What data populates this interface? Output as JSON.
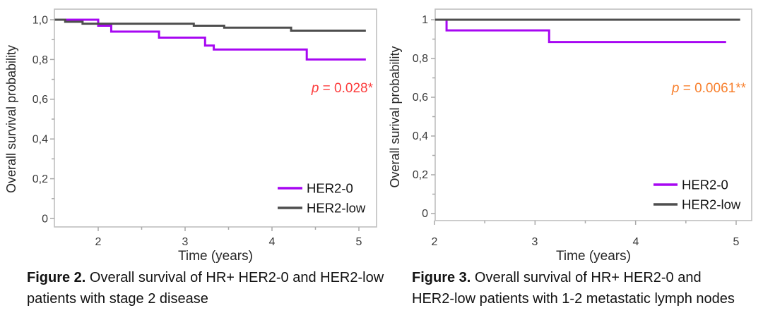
{
  "style": {
    "frame_color": "#bfbfbf",
    "tick_color": "#a9a9a9",
    "her2_0_color": "#a707f2",
    "her2_low_color": "#4e4e4e",
    "p_left_color": "#fc3d3d",
    "p_right_color": "#f8812f"
  },
  "chart_data": [
    {
      "type": "line",
      "chart_style": "kaplan-meier-step",
      "ylabel": "Overall survival probability",
      "xlabel": "Time (years)",
      "xlim": [
        1.5,
        5.12
      ],
      "ylim": [
        0,
        1.05
      ],
      "grid": false,
      "x_ticks": [
        2,
        3,
        4,
        5
      ],
      "x_tick_labels": [
        "2",
        "3",
        "4",
        "5"
      ],
      "x_minor_ticks": [
        2.5,
        3.5,
        4.5
      ],
      "y_ticks": [
        1.0,
        0.8,
        0.6,
        0.4,
        0.2,
        0
      ],
      "y_tick_labels": [
        "1,0",
        "0,8",
        "0,6",
        "0,4",
        "0,2",
        "0"
      ],
      "y_minor_ticks": [
        0.9,
        0.7,
        0.5,
        0.3,
        0.1
      ],
      "legend_position": "inside lower right",
      "annotation": {
        "p_symbol": "p",
        "p_rest": " = 0.028*",
        "color": "#fc3d3d"
      },
      "series": [
        {
          "name": "HER2-0",
          "color": "#a707f2",
          "end_time": 5.08,
          "steps": [
            [
              1.5,
              1.0
            ],
            [
              2.0,
              0.97
            ],
            [
              2.15,
              0.94
            ],
            [
              2.7,
              0.91
            ],
            [
              3.23,
              0.87
            ],
            [
              3.33,
              0.85
            ],
            [
              4.4,
              0.8
            ]
          ]
        },
        {
          "name": "HER2-low",
          "color": "#4e4e4e",
          "end_time": 5.08,
          "steps": [
            [
              1.5,
              1.0
            ],
            [
              1.62,
              0.99
            ],
            [
              1.82,
              0.98
            ],
            [
              3.1,
              0.97
            ],
            [
              3.45,
              0.96
            ],
            [
              4.22,
              0.945
            ]
          ]
        }
      ],
      "caption": {
        "label": "Figure 2.",
        "text": " Overall survival of HR+ HER2-0 and HER2-low patients with stage 2 disease"
      }
    },
    {
      "type": "line",
      "chart_style": "kaplan-meier-step",
      "ylabel": "Overall surival probability",
      "xlabel": "Time (years)",
      "xlim": [
        2.0,
        5.15
      ],
      "ylim": [
        0,
        1.05
      ],
      "grid": false,
      "x_ticks": [
        2,
        3,
        4,
        5
      ],
      "x_tick_labels": [
        "2",
        "3",
        "4",
        "5"
      ],
      "x_minor_ticks": [
        2.5,
        3.5,
        4.5
      ],
      "y_ticks": [
        1.0,
        0.8,
        0.6,
        0.4,
        0.2,
        0
      ],
      "y_tick_labels": [
        "1",
        "0,8",
        "0,6",
        "0,4",
        "0,2",
        "0"
      ],
      "y_minor_ticks": [
        0.9,
        0.7,
        0.5,
        0.3,
        0.1
      ],
      "legend_position": "inside lower right",
      "annotation": {
        "p_symbol": "p",
        "p_rest": " = 0.0061**",
        "color": "#f8812f"
      },
      "series": [
        {
          "name": "HER2-0",
          "color": "#a707f2",
          "end_time": 4.9,
          "steps": [
            [
              2.0,
              1.0
            ],
            [
              2.12,
              0.945
            ],
            [
              3.14,
              0.885
            ]
          ]
        },
        {
          "name": "HER2-low",
          "color": "#4e4e4e",
          "end_time": 5.04,
          "steps": [
            [
              2.0,
              1.0
            ]
          ]
        }
      ],
      "caption": {
        "label": "Figure 3.",
        "text": " Overall survival of HR+ HER2-0 and HER2-low patients with 1-2 metastatic lymph nodes"
      }
    }
  ]
}
